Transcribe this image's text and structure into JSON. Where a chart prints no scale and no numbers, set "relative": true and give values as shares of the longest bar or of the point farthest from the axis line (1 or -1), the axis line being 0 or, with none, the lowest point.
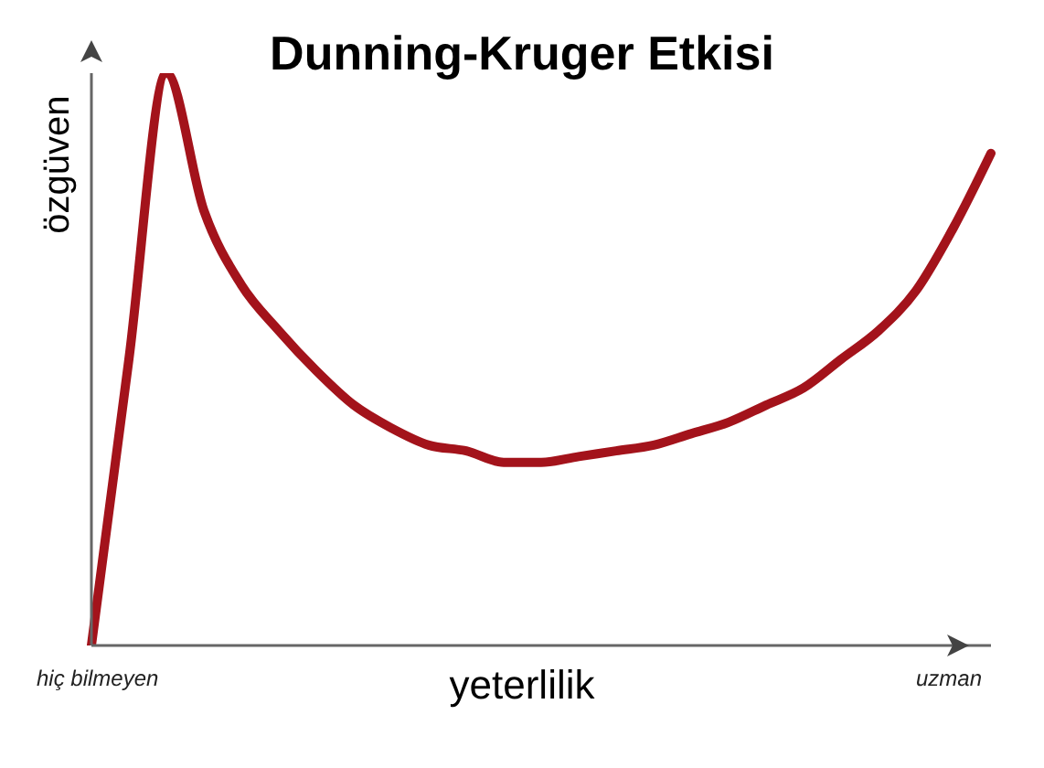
{
  "chart_data": {
    "type": "line",
    "title": "Dunning-Kruger Etkisi",
    "xlabel": "yeterlilik",
    "ylabel": "özgüven",
    "relative": true,
    "marker": "none",
    "annotations": [
      "hiç bilmeyen",
      "uzman"
    ],
    "categories": [
      null,
      null,
      null,
      null,
      null,
      null,
      null,
      null,
      null,
      null,
      null,
      null,
      null,
      null,
      null,
      null,
      null,
      null,
      null,
      null,
      null,
      null,
      null,
      null,
      null
    ],
    "series": [
      {
        "color": "#a3131b",
        "values": [
          0,
          0.5,
          1,
          0.76,
          0.63,
          0.55,
          0.48,
          0.42,
          0.38,
          0.35,
          0.34,
          0.32,
          0.32,
          0.33,
          0.34,
          0.35,
          0.37,
          0.39,
          0.42,
          0.45,
          0.5,
          0.55,
          0.62,
          0.73,
          0.86
        ]
      }
    ]
  }
}
